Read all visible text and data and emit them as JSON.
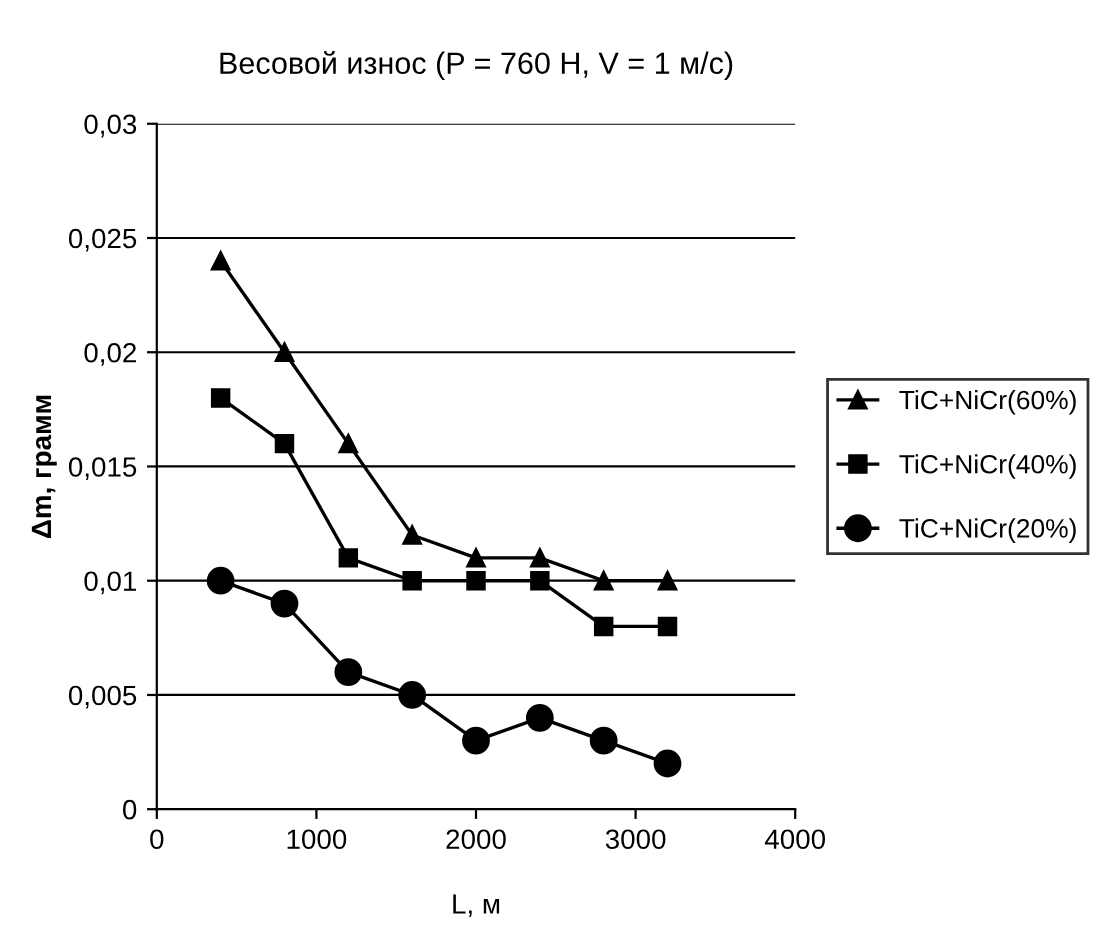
{
  "chart_data": {
    "type": "line",
    "title": "Весовой износ (P = 760 H, V = 1 м/с)",
    "xlabel": "L, м",
    "ylabel": "Δm, грамм",
    "x": [
      400,
      800,
      1200,
      1600,
      2000,
      2400,
      2800,
      3200
    ],
    "series": [
      {
        "name": "TiC+NiCr(60%)",
        "color": "#000000",
        "marker": "triangle",
        "values": [
          0.024,
          0.02,
          0.016,
          0.012,
          0.011,
          0.011,
          0.01,
          0.01
        ]
      },
      {
        "name": "TiC+NiCr(40%)",
        "color": "#000000",
        "marker": "square",
        "values": [
          0.018,
          0.016,
          0.011,
          0.01,
          0.01,
          0.01,
          0.008,
          0.008
        ]
      },
      {
        "name": "TiC+NiCr(20%)",
        "color": "#000000",
        "marker": "circle",
        "values": [
          0.01,
          0.009,
          0.006,
          0.005,
          0.003,
          0.004,
          0.003,
          0.002
        ]
      }
    ],
    "xlim": [
      0,
      4000
    ],
    "xticks": [
      0,
      1000,
      2000,
      3000,
      4000
    ],
    "ylim": [
      0,
      0.03
    ],
    "yticks": [
      0,
      {
        "value": 0.005,
        "label": "0,005"
      },
      {
        "value": 0.01,
        "label": "0,01"
      },
      {
        "value": 0.015,
        "label": "0,015"
      },
      {
        "value": 0.02,
        "label": "0,02"
      },
      {
        "value": 0.025,
        "label": "0,025"
      },
      {
        "value": 0.03,
        "label": "0,03"
      }
    ],
    "grid": "y",
    "legend": "right",
    "line_style": "solid"
  }
}
